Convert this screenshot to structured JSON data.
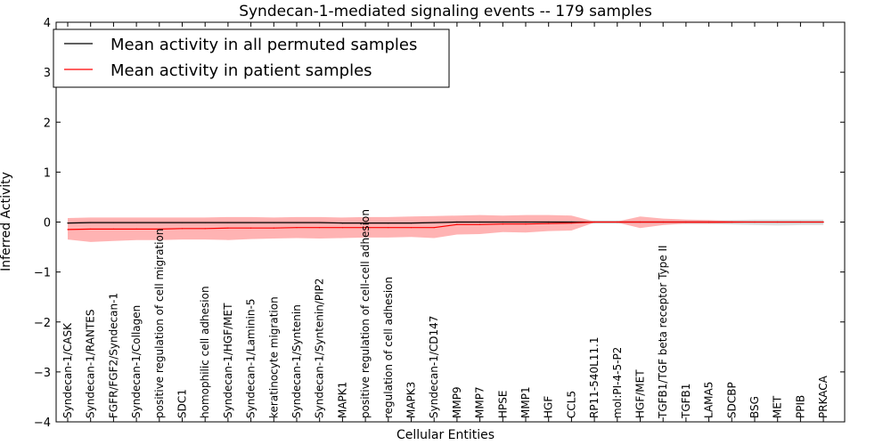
{
  "chart_data": {
    "type": "line",
    "title": "Syndecan-1-mediated signaling events -- 179 samples",
    "xlabel": "Cellular Entities",
    "ylabel": "Inferred Activity",
    "ylim": [
      -4,
      4
    ],
    "yticks": [
      -4,
      -3,
      -2,
      -1,
      0,
      1,
      2,
      3,
      4
    ],
    "ytick_labels": [
      "−4",
      "−3",
      "−2",
      "−1",
      "0",
      "1",
      "2",
      "3",
      "4"
    ],
    "grid": false,
    "legend_position": "top-left",
    "categories": [
      "Syndecan-1/CASK",
      "Syndecan-1/RANTES",
      "FGFR/FGF2/Syndecan-1",
      "Syndecan-1/Collagen",
      "positive regulation of cell migration",
      "SDC1",
      "homophilic cell adhesion",
      "Syndecan-1/HGF/MET",
      "Syndecan-1/Laminin-5",
      "keratinocyte migration",
      "Syndecan-1/Syntenin",
      "Syndecan-1/Syntenin/PIP2",
      "MAPK1",
      "positive regulation of cell-cell adhesion",
      "regulation of cell adhesion",
      "MAPK3",
      "Syndecan-1/CD147",
      "MMP9",
      "MMP7",
      "HPSE",
      "MMP1",
      "HGF",
      "CCL5",
      "RP11-540L11.1",
      "mol:PI-4-5-P2",
      "HGF/MET",
      "TGFB1/TGF beta receptor Type II",
      "TGFB1",
      "LAMA5",
      "SDCBP",
      "BSG",
      "MET",
      "PPIB",
      "PRKACA"
    ],
    "series": [
      {
        "name": "Mean activity in all permuted samples",
        "color": "#000000",
        "values": [
          -0.02,
          -0.01,
          -0.01,
          -0.01,
          -0.01,
          -0.01,
          -0.01,
          -0.01,
          -0.01,
          -0.01,
          -0.01,
          -0.01,
          -0.02,
          -0.02,
          -0.02,
          -0.02,
          -0.01,
          0.0,
          0.0,
          0.0,
          0.0,
          0.0,
          0.0,
          0.0,
          0.0,
          0.0,
          0.0,
          0.0,
          0.0,
          0.0,
          0.0,
          0.0,
          0.0,
          0.0
        ],
        "lower": [
          -0.05,
          -0.05,
          -0.05,
          -0.05,
          -0.05,
          -0.05,
          -0.05,
          -0.05,
          -0.05,
          -0.05,
          -0.05,
          -0.05,
          -0.05,
          -0.05,
          -0.05,
          -0.05,
          -0.04,
          -0.03,
          -0.03,
          -0.03,
          -0.03,
          -0.03,
          -0.03,
          -0.03,
          -0.03,
          -0.03,
          -0.03,
          -0.04,
          -0.04,
          -0.05,
          -0.06,
          -0.07,
          -0.06,
          -0.06
        ],
        "upper": [
          0.02,
          0.03,
          0.03,
          0.03,
          0.03,
          0.03,
          0.03,
          0.03,
          0.03,
          0.03,
          0.03,
          0.03,
          0.02,
          0.02,
          0.02,
          0.02,
          0.02,
          0.03,
          0.03,
          0.03,
          0.03,
          0.03,
          0.03,
          0.03,
          0.03,
          0.03,
          0.03,
          0.03,
          0.03,
          0.04,
          0.05,
          0.05,
          0.05,
          0.05
        ]
      },
      {
        "name": "Mean activity in patient samples",
        "color": "#ff0000",
        "values": [
          -0.15,
          -0.14,
          -0.14,
          -0.14,
          -0.14,
          -0.13,
          -0.13,
          -0.12,
          -0.12,
          -0.12,
          -0.11,
          -0.11,
          -0.11,
          -0.11,
          -0.11,
          -0.11,
          -0.11,
          -0.05,
          -0.05,
          -0.04,
          -0.04,
          -0.03,
          -0.02,
          0.0,
          0.0,
          0.0,
          0.0,
          0.0,
          0.0,
          0.0,
          0.0,
          0.0,
          0.0,
          0.0
        ],
        "lower": [
          -0.35,
          -0.4,
          -0.38,
          -0.36,
          -0.36,
          -0.35,
          -0.35,
          -0.36,
          -0.34,
          -0.33,
          -0.32,
          -0.33,
          -0.32,
          -0.31,
          -0.31,
          -0.3,
          -0.32,
          -0.25,
          -0.24,
          -0.2,
          -0.21,
          -0.18,
          -0.17,
          -0.01,
          -0.01,
          -0.12,
          -0.06,
          -0.03,
          -0.03,
          -0.02,
          0.0,
          0.0,
          0.0,
          0.0
        ],
        "upper": [
          0.08,
          0.09,
          0.09,
          0.09,
          0.09,
          0.09,
          0.09,
          0.1,
          0.1,
          0.09,
          0.1,
          0.1,
          0.09,
          0.1,
          0.1,
          0.11,
          0.12,
          0.13,
          0.14,
          0.13,
          0.14,
          0.14,
          0.13,
          0.01,
          0.01,
          0.11,
          0.07,
          0.05,
          0.04,
          0.02,
          0.01,
          0.01,
          0.01,
          0.01
        ]
      }
    ]
  }
}
